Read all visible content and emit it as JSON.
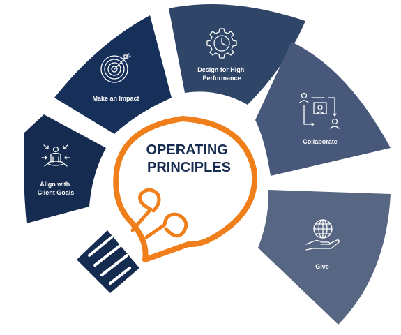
{
  "title": {
    "line1": "OPERATING",
    "line2": "PRINCIPLES"
  },
  "segments": [
    {
      "label_lines": [
        "Align with",
        "Client Goals"
      ],
      "icon": "person-arrows-icon",
      "color": "#152b4f"
    },
    {
      "label_lines": [
        "Make an Impact"
      ],
      "icon": "target-icon",
      "color": "#16305a"
    },
    {
      "label_lines": [
        "Design for High",
        "Performance"
      ],
      "icon": "gear-clock-icon",
      "color": "#2f4668"
    },
    {
      "label_lines": [
        "Collaborate"
      ],
      "icon": "org-people-icon",
      "color": "#47587a"
    },
    {
      "label_lines": [
        "Give"
      ],
      "icon": "globe-hand-icon",
      "color": "#576683"
    }
  ],
  "colors": {
    "bulb_outline": "#f07f1b",
    "bulb_base": "#152b4f",
    "title_text": "#152b4f",
    "icon_stroke": "#ffffff"
  }
}
